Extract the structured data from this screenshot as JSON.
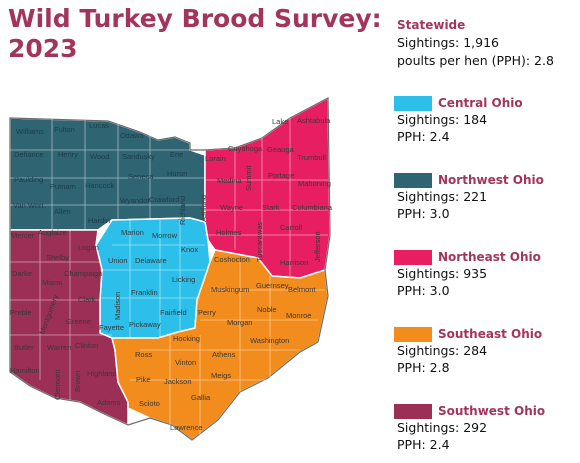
{
  "title": {
    "line1": "Wild Turkey Brood Survey:",
    "line2": "2023"
  },
  "statewide": {
    "heading": "Statewide",
    "sightings": "Sightings: 1,916",
    "pph": "poults per hen (PPH): 2.8"
  },
  "regions": [
    {
      "name": "Central Ohio",
      "color": "#2bbfea",
      "sightings": "Sightings: 184",
      "pph": "PPH: 2.4"
    },
    {
      "name": "Northwest Ohio",
      "color": "#2f6473",
      "sightings": "Sightings: 221",
      "pph": "PPH: 3.0"
    },
    {
      "name": "Northeast Ohio",
      "color": "#e81e63",
      "sightings": "Sightings: 935",
      "pph": "PPH: 3.0"
    },
    {
      "name": "Southeast Ohio",
      "color": "#f28c1c",
      "sightings": "Sightings: 284",
      "pph": "PPH: 2.8"
    },
    {
      "name": "Southwest Ohio",
      "color": "#9b2f55",
      "sightings": "Sightings: 292",
      "pph": "PPH: 2.4"
    }
  ],
  "counties": {
    "northwest": [
      "Williams",
      "Fulton",
      "Lucas",
      "Ottawa",
      "Defiance",
      "Henry",
      "Wood",
      "Sandusky",
      "Erie",
      "Paulding",
      "Putnam",
      "Hancock",
      "Seneca",
      "Huron",
      "Van Wert",
      "Allen",
      "Hardin",
      "Wyandot",
      "Crawford",
      "Richland"
    ],
    "northeast": [
      "Lake",
      "Ashtabula",
      "Cuyahoga",
      "Geauga",
      "Lorain",
      "Trumbull",
      "Medina",
      "Summit",
      "Portage",
      "Ashland",
      "Wayne",
      "Stark",
      "Mahoning",
      "Columbiana",
      "Holmes",
      "Carroll",
      "Tuscarawas",
      "Harrison",
      "Jefferson"
    ],
    "central": [
      "Marion",
      "Morrow",
      "Logan",
      "Union",
      "Delaware",
      "Knox",
      "Champaign",
      "Licking",
      "Franklin",
      "Madison",
      "Fairfield",
      "Fayette",
      "Pickaway"
    ],
    "southwest": [
      "Mercer",
      "Auglaize",
      "Shelby",
      "Darke",
      "Miami",
      "Clark",
      "Preble",
      "Montgomery",
      "Greene",
      "Butler",
      "Warren",
      "Clinton",
      "Hamilton",
      "Clermont",
      "Brown",
      "Highland",
      "Adams"
    ],
    "southeast": [
      "Coshocton",
      "Guernsey",
      "Belmont",
      "Muskingum",
      "Noble",
      "Monroe",
      "Perry",
      "Morgan",
      "Washington",
      "Hocking",
      "Athens",
      "Ross",
      "Vinton",
      "Pike",
      "Jackson",
      "Meigs",
      "Scioto",
      "Gallia",
      "Lawrence"
    ]
  },
  "map": {
    "border_color": "#ffffff",
    "outline_color": "#6b6b6b"
  }
}
